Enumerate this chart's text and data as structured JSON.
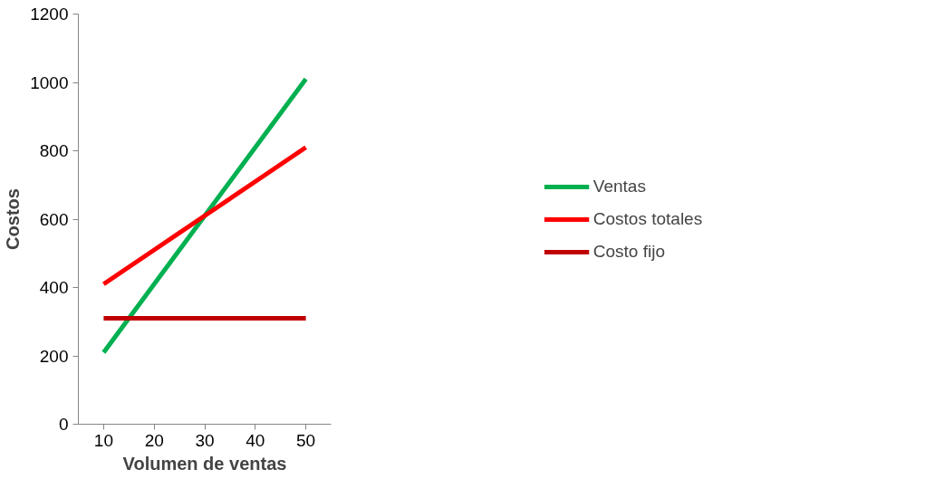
{
  "chart_data": {
    "type": "line",
    "xlabel": "Volumen de ventas",
    "ylabel": "Costos",
    "categories": [
      "10",
      "20",
      "30",
      "40",
      "50"
    ],
    "series": [
      {
        "name": "Ventas",
        "color": "#00b050",
        "values": [
          210,
          410,
          610,
          810,
          1010
        ]
      },
      {
        "name": "Costos totales",
        "color": "#ff0000",
        "values": [
          410,
          510,
          610,
          710,
          810
        ]
      },
      {
        "name": "Costo fijo",
        "color": "#c00000",
        "values": [
          310,
          310,
          310,
          310,
          310
        ]
      }
    ],
    "ylim": [
      0,
      1200
    ],
    "yticks": [
      0,
      200,
      400,
      600,
      800,
      1000,
      1200
    ],
    "grid": false,
    "legend": "right",
    "marker": "none",
    "line_style": "solid"
  }
}
